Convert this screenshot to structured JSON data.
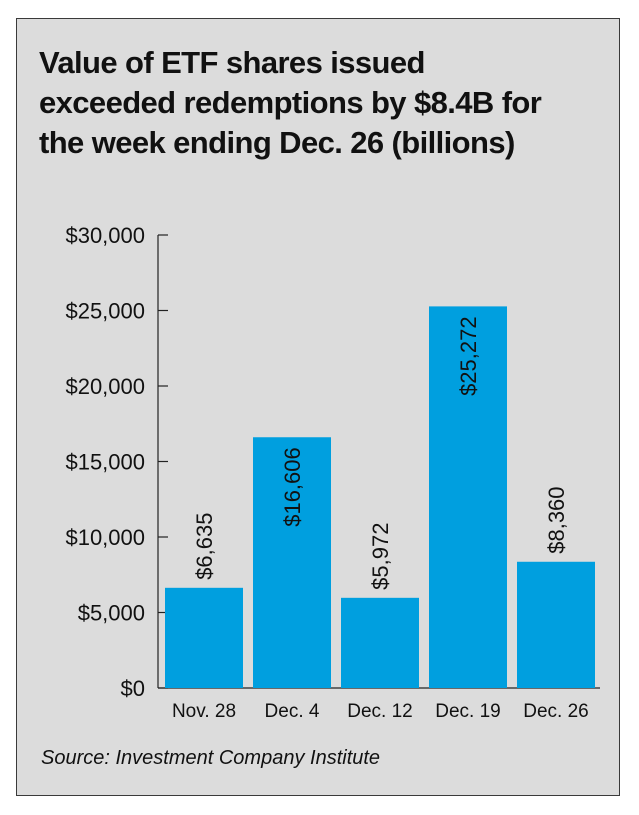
{
  "chart_data": {
    "type": "bar",
    "title_lines": [
      "Value of ETF shares issued",
      "exceeded redemptions by $8.4B for",
      "the week ending Dec. 26 (billions)"
    ],
    "categories": [
      "Nov. 28",
      "Dec. 4",
      "Dec. 12",
      "Dec. 19",
      "Dec. 26"
    ],
    "values": [
      6635,
      16606,
      5972,
      25272,
      8360
    ],
    "value_labels": [
      "$6,635",
      "$16,606",
      "$5,972",
      "$25,272",
      "$8,360"
    ],
    "y_ticks": [
      0,
      5000,
      10000,
      15000,
      20000,
      25000,
      30000
    ],
    "y_tick_labels": [
      "$0",
      "$5,000",
      "$10,000",
      "$15,000",
      "$20,000",
      "$25,000",
      "$30,000"
    ],
    "ylim": [
      0,
      30000
    ],
    "bar_color": "#009fdf",
    "background_color": "#dcdcdc",
    "grid": false,
    "legend": "none",
    "source": "Source: Investment Company Institute"
  }
}
